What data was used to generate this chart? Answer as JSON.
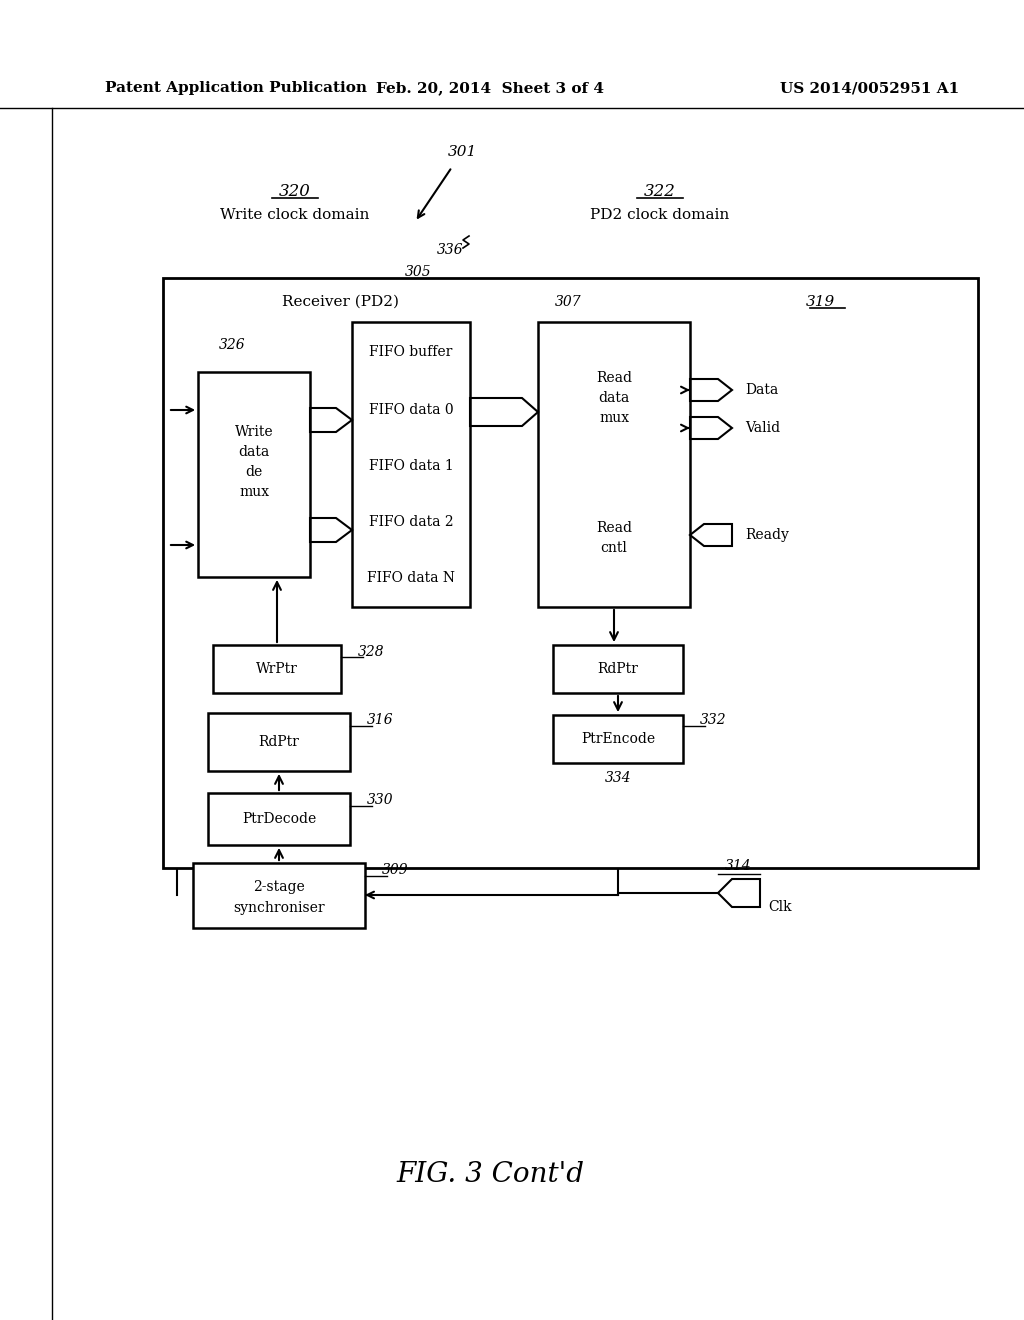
{
  "title_left": "Patent Application Publication",
  "title_center": "Feb. 20, 2014  Sheet 3 of 4",
  "title_right": "US 2014/0052951 A1",
  "fig_caption": "FIG. 3 Cont'd",
  "background_color": "#ffffff",
  "text_color": "#000000",
  "domain_label_320": "320",
  "domain_label_322": "322",
  "domain_text_320": "Write clock domain",
  "domain_text_322": "PD2 clock domain",
  "label_301": "301",
  "label_305": "305",
  "label_319": "319",
  "label_326": "326",
  "label_307": "307",
  "label_328": "328",
  "label_316": "316",
  "label_330": "330",
  "label_309": "309",
  "label_332": "332",
  "label_334": "334",
  "label_314": "314",
  "label_336": "336"
}
